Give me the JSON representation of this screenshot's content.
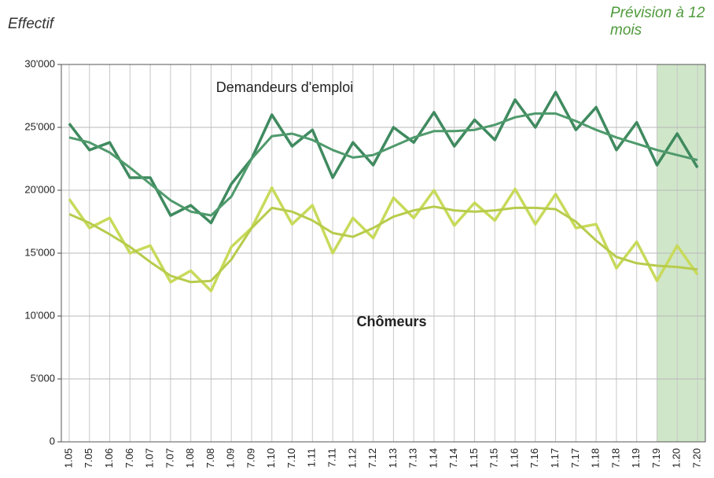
{
  "chart_data": {
    "type": "line",
    "annotations": [
      "Effectif",
      "Prévision à 12 mois"
    ],
    "categories": [
      "1.05",
      "7.05",
      "1.06",
      "7.06",
      "1.07",
      "7.07",
      "1.08",
      "7.08",
      "1.09",
      "7.09",
      "1.10",
      "7.10",
      "1.11",
      "7.11",
      "1.12",
      "7.12",
      "1.13",
      "7.13",
      "1.14",
      "7.14",
      "1.15",
      "7.15",
      "1.16",
      "7.16",
      "1.17",
      "7.17",
      "1.18",
      "7.18",
      "1.19",
      "7.19",
      "1.20",
      "7.20"
    ],
    "series": [
      {
        "name": "Demandeurs d'emploi",
        "color": "#3f8a5f",
        "width": 3.5,
        "values": [
          25300,
          23200,
          23800,
          21000,
          21000,
          18000,
          18800,
          17400,
          20500,
          22500,
          26000,
          23500,
          24800,
          21000,
          23800,
          22000,
          25000,
          23800,
          26200,
          23500,
          25600,
          24000,
          27200,
          25000,
          27800,
          24800,
          26600,
          23200,
          25400,
          22000,
          24500,
          21800
        ]
      },
      {
        "color": "#4f9a6c",
        "width": 3,
        "values": [
          24200,
          23800,
          23000,
          21800,
          20500,
          19200,
          18300,
          18000,
          19500,
          22500,
          24300,
          24500,
          24000,
          23200,
          22600,
          22800,
          23500,
          24200,
          24700,
          24700,
          24800,
          25200,
          25800,
          26100,
          26100,
          25500,
          24800,
          24200,
          23700,
          23200,
          22800,
          22400
        ]
      },
      {
        "name": "Chômeurs",
        "color": "#c8da5a",
        "width": 3.5,
        "values": [
          19300,
          17000,
          17800,
          15000,
          15600,
          12700,
          13600,
          12000,
          15500,
          17000,
          20200,
          17300,
          18800,
          15000,
          17800,
          16200,
          19400,
          17800,
          20000,
          17200,
          19000,
          17600,
          20100,
          17300,
          19700,
          17000,
          17300,
          13800,
          15900,
          12800,
          15600,
          13300
        ]
      },
      {
        "color": "#b7cc4c",
        "width": 3,
        "values": [
          18100,
          17400,
          16500,
          15500,
          14300,
          13200,
          12700,
          12800,
          14500,
          17000,
          18600,
          18300,
          17600,
          16600,
          16300,
          17000,
          17900,
          18400,
          18700,
          18400,
          18300,
          18400,
          18600,
          18600,
          18500,
          17500,
          16000,
          14700,
          14200,
          14000,
          13900,
          13700
        ]
      }
    ],
    "ylim": [
      0,
      30000
    ],
    "yticks": [
      0,
      {
        "value": 5000,
        "label": "5'000"
      },
      {
        "value": 10000,
        "label": "10'000"
      },
      {
        "value": 15000,
        "label": "15'000"
      },
      {
        "value": 20000,
        "label": "20'000"
      },
      {
        "value": 25000,
        "label": "25'000"
      },
      {
        "value": 30000,
        "label": "30'000"
      }
    ],
    "grid": true,
    "shade_from": "7.19",
    "shade_color": "#cfe6c9"
  }
}
